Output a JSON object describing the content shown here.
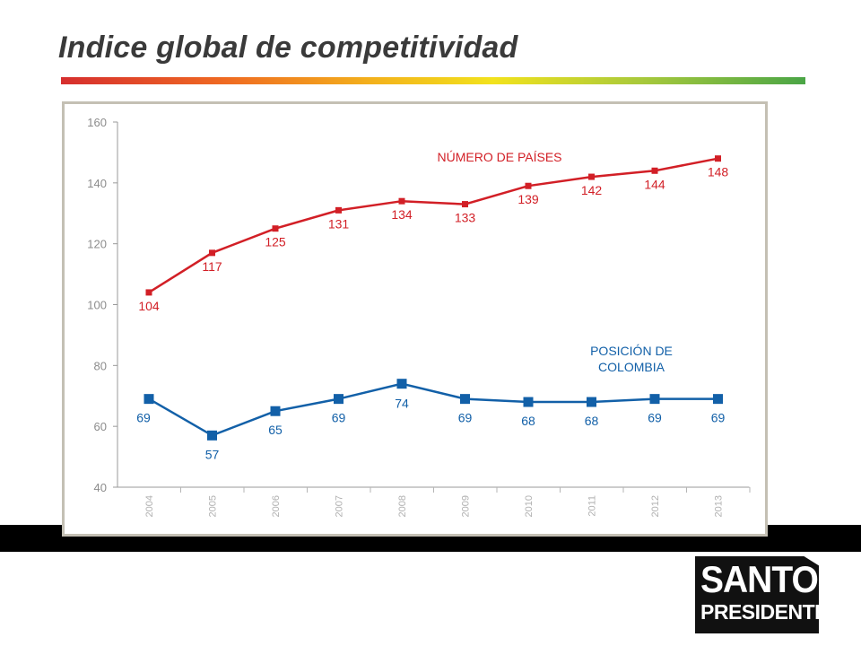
{
  "slide": {
    "title": "Indice global de competitividad",
    "logo_line1": "SANTOS",
    "logo_line2": "PRESIDENTE"
  },
  "chart_data": {
    "type": "line",
    "title": "",
    "xlabel": "",
    "ylabel": "",
    "x": [
      "2004",
      "2005",
      "2006",
      "2007",
      "2008",
      "2009",
      "2010",
      "2011",
      "2012",
      "2013"
    ],
    "ylim": [
      40,
      160
    ],
    "yticks": [
      40,
      60,
      80,
      100,
      120,
      140,
      160
    ],
    "grid": false,
    "series": [
      {
        "name": "NÚMERO DE PAÍSES",
        "color": "#d21f26",
        "marker": "square-small",
        "values": [
          104,
          117,
          125,
          131,
          134,
          133,
          139,
          142,
          144,
          148
        ]
      },
      {
        "name_lines": [
          "POSICIÓN DE",
          "COLOMBIA"
        ],
        "color": "#1260a8",
        "marker": "square",
        "values": [
          69,
          57,
          65,
          69,
          74,
          69,
          68,
          68,
          69,
          69
        ]
      }
    ]
  }
}
